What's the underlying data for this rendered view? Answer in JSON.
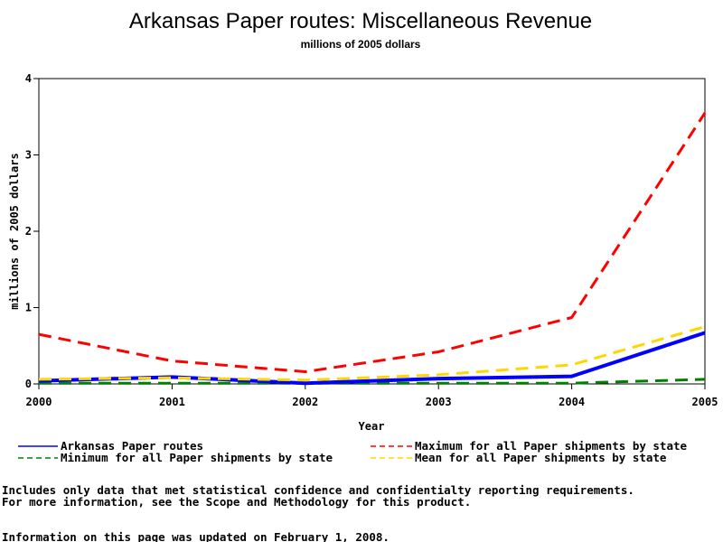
{
  "chart_data": {
    "type": "line",
    "title": "Arkansas Paper routes: Miscellaneous Revenue",
    "subtitle": "millions of 2005 dollars",
    "xlabel": "Year",
    "ylabel": "millions of 2005 dollars",
    "x": [
      2000,
      2001,
      2002,
      2003,
      2004,
      2005
    ],
    "xlim": [
      2000,
      2005
    ],
    "ylim": [
      0,
      4
    ],
    "xticks": [
      "2000",
      "2001",
      "2002",
      "2003",
      "2004",
      "2005"
    ],
    "yticks": [
      "0",
      "1",
      "2",
      "3",
      "4"
    ],
    "grid": false,
    "legend_position": "bottom",
    "series": [
      {
        "name": "Arkansas Paper routes",
        "values": [
          0.04,
          0.09,
          0.01,
          0.07,
          0.1,
          0.67
        ],
        "color": "#0000ff",
        "style": "solid"
      },
      {
        "name": "Maximum for all Paper shipments by state",
        "values": [
          0.65,
          0.3,
          0.16,
          0.42,
          0.87,
          3.55
        ],
        "color": "#ff0000",
        "style": "dashed"
      },
      {
        "name": "Minimum for all Paper shipments by state",
        "values": [
          0.01,
          0.01,
          0.01,
          0.01,
          0.01,
          0.06
        ],
        "color": "#008000",
        "style": "dashed"
      },
      {
        "name": "Mean for all Paper shipments by state",
        "values": [
          0.06,
          0.08,
          0.05,
          0.12,
          0.25,
          0.75
        ],
        "color": "#ffd700",
        "style": "dashed"
      }
    ]
  },
  "notes": {
    "line1": "Includes only data that met statistical confidence and confidentialty reporting requirements.",
    "line2": "For more information, see the Scope and Methodology for this product.",
    "updated": "Information on this page was updated on February 1, 2008."
  }
}
